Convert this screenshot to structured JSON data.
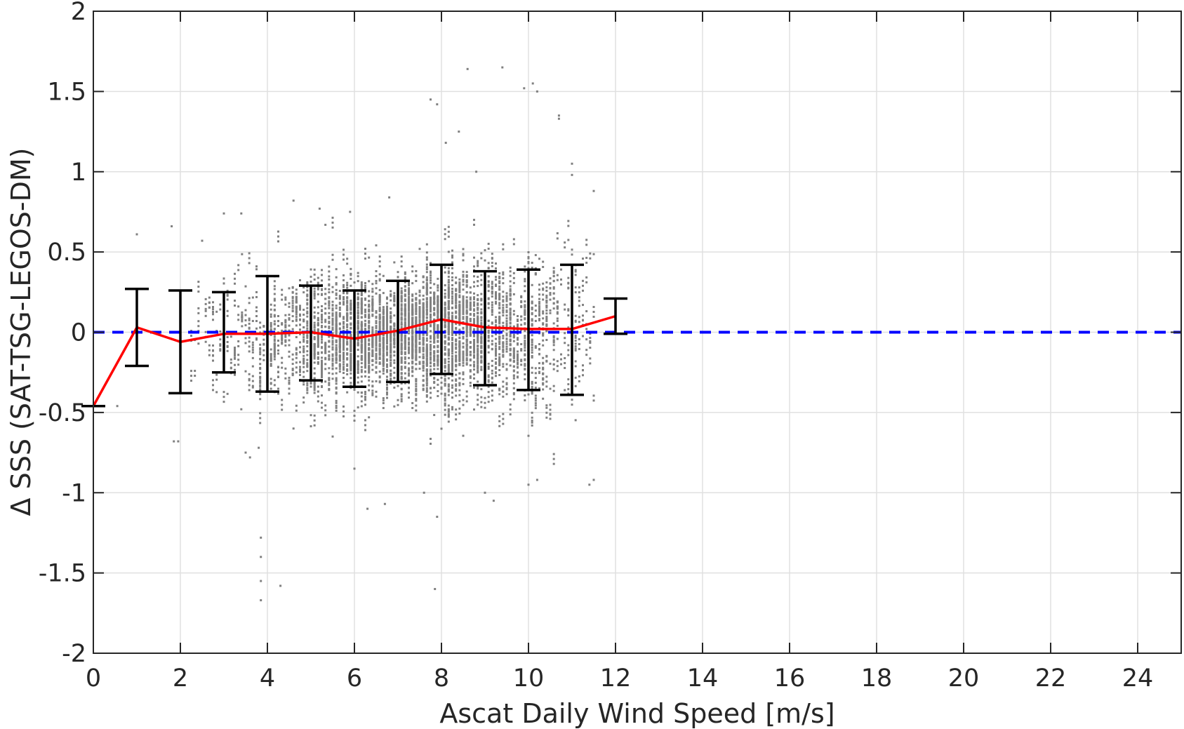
{
  "chart_data": {
    "type": "scatter",
    "title": "",
    "xlabel": "Ascat Daily Wind Speed [m/s]",
    "ylabel": "Δ SSS (SAT-TSG-LEGOS-DM)",
    "xlim": [
      0,
      25
    ],
    "ylim": [
      -2,
      2
    ],
    "xticks": [
      "0",
      "2",
      "4",
      "6",
      "8",
      "10",
      "12",
      "14",
      "16",
      "18",
      "20",
      "22",
      "24"
    ],
    "yticks": [
      "2",
      "1.5",
      "1",
      "0.5",
      "0",
      "-0.5",
      "-1",
      "-1.5",
      "-2"
    ],
    "grid": true,
    "legend": "none",
    "series": [
      {
        "kind": "scatter",
        "color": "#808080",
        "description": "individual collocations (dense gray cloud, x ≈ 0.2–11.5 m/s, y mostly within ±0.6)",
        "sample_points": [
          [
            0.55,
            -0.46
          ],
          [
            1.0,
            0.61
          ],
          [
            1.8,
            0.66
          ],
          [
            1.85,
            -0.68
          ],
          [
            1.95,
            -0.68
          ],
          [
            2.5,
            0.57
          ],
          [
            3.0,
            0.74
          ],
          [
            3.4,
            0.74
          ],
          [
            3.4,
            -0.48
          ],
          [
            3.5,
            -0.75
          ],
          [
            3.6,
            -0.78
          ],
          [
            3.8,
            -0.72
          ],
          [
            3.85,
            -1.28
          ],
          [
            3.85,
            -1.4
          ],
          [
            3.85,
            -1.55
          ],
          [
            3.85,
            -1.67
          ],
          [
            4.3,
            -1.58
          ],
          [
            4.6,
            0.82
          ],
          [
            5.2,
            0.77
          ],
          [
            5.9,
            0.75
          ],
          [
            6.0,
            -0.85
          ],
          [
            6.3,
            -1.1
          ],
          [
            6.7,
            -1.07
          ],
          [
            6.8,
            0.84
          ],
          [
            7.6,
            -1.0
          ],
          [
            7.75,
            1.45
          ],
          [
            7.9,
            1.42
          ],
          [
            7.85,
            -1.6
          ],
          [
            7.9,
            -1.15
          ],
          [
            8.1,
            1.18
          ],
          [
            8.4,
            1.25
          ],
          [
            8.6,
            1.64
          ],
          [
            8.8,
            1.0
          ],
          [
            9.2,
            -1.05
          ],
          [
            9.4,
            1.65
          ],
          [
            9.9,
            1.52
          ],
          [
            10.1,
            1.55
          ],
          [
            10.2,
            1.5
          ],
          [
            10.0,
            -0.95
          ],
          [
            10.7,
            1.35
          ],
          [
            10.7,
            1.33
          ],
          [
            11.0,
            1.05
          ],
          [
            11.0,
            0.98
          ],
          [
            11.5,
            0.88
          ],
          [
            11.5,
            -0.92
          ],
          [
            11.4,
            -0.95
          ],
          [
            10.2,
            -0.92
          ],
          [
            9.0,
            -1.0
          ],
          [
            5.5,
            -0.65
          ],
          [
            4.6,
            -0.6
          ]
        ]
      },
      {
        "kind": "reference_line",
        "name": "",
        "color": "#0000ff",
        "style": "dashed",
        "y": 0
      },
      {
        "kind": "line",
        "name": "",
        "color": "#ff0000",
        "x": [
          0,
          1,
          2,
          3,
          4,
          5,
          6,
          7,
          8,
          9,
          10,
          11,
          12
        ],
        "y": [
          -0.46,
          0.03,
          -0.06,
          -0.01,
          -0.01,
          0.0,
          -0.04,
          0.01,
          0.08,
          0.03,
          0.02,
          0.02,
          0.1
        ]
      },
      {
        "kind": "errorbar",
        "color": "#000000",
        "x": [
          0,
          1,
          2,
          3,
          4,
          5,
          6,
          7,
          8,
          9,
          10,
          11,
          12
        ],
        "low": [
          -0.46,
          -0.21,
          -0.38,
          -0.25,
          -0.37,
          -0.3,
          -0.34,
          -0.31,
          -0.26,
          -0.33,
          -0.36,
          -0.39,
          -0.01
        ],
        "high": [
          -0.46,
          0.27,
          0.26,
          0.25,
          0.35,
          0.29,
          0.26,
          0.32,
          0.42,
          0.38,
          0.39,
          0.42,
          0.21
        ]
      }
    ]
  }
}
